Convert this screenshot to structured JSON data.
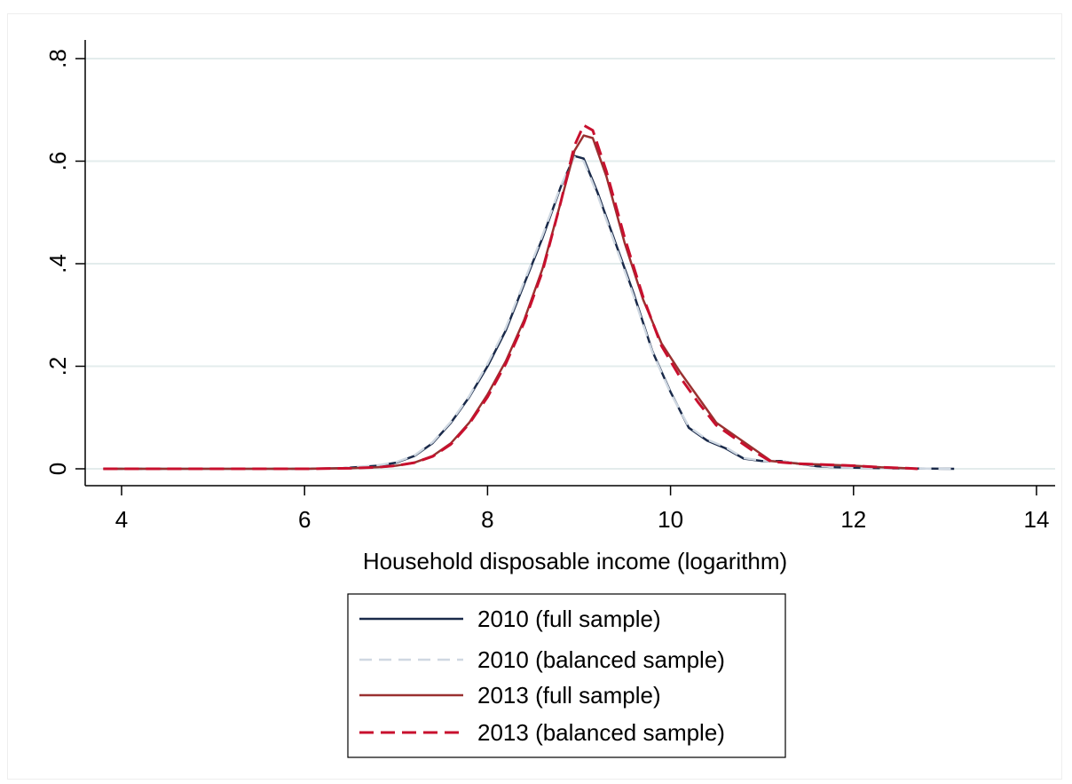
{
  "chart_data": {
    "type": "line",
    "xlabel": "Household disposable income (logarithm)",
    "ylabel": "",
    "xlim": [
      3.7,
      14.2
    ],
    "ylim": [
      0,
      0.8
    ],
    "x_ticks": [
      4,
      6,
      8,
      10,
      12,
      14
    ],
    "x_tick_labels": [
      "4",
      "6",
      "8",
      "10",
      "12",
      "14"
    ],
    "y_ticks": [
      0,
      0.2,
      0.4,
      0.6,
      0.8
    ],
    "y_tick_labels": [
      "0",
      ".2",
      ".4",
      ".6",
      ".8"
    ],
    "grid": "horizontal",
    "legend_position": "bottom",
    "series": [
      {
        "name": "2010 (full sample)",
        "color": "#1a2a4a",
        "dash": "solid",
        "points": [
          [
            3.8,
            0
          ],
          [
            5,
            0
          ],
          [
            6,
            0
          ],
          [
            6.4,
            0.001
          ],
          [
            6.8,
            0.006
          ],
          [
            7.0,
            0.012
          ],
          [
            7.2,
            0.025
          ],
          [
            7.4,
            0.05
          ],
          [
            7.6,
            0.09
          ],
          [
            7.8,
            0.14
          ],
          [
            8.0,
            0.2
          ],
          [
            8.2,
            0.27
          ],
          [
            8.4,
            0.36
          ],
          [
            8.6,
            0.45
          ],
          [
            8.8,
            0.55
          ],
          [
            8.95,
            0.61
          ],
          [
            9.05,
            0.605
          ],
          [
            9.2,
            0.54
          ],
          [
            9.4,
            0.44
          ],
          [
            9.6,
            0.34
          ],
          [
            9.8,
            0.23
          ],
          [
            10.0,
            0.15
          ],
          [
            10.2,
            0.08
          ],
          [
            10.4,
            0.055
          ],
          [
            10.6,
            0.04
          ],
          [
            10.8,
            0.02
          ],
          [
            11.0,
            0.015
          ],
          [
            11.2,
            0.015
          ],
          [
            11.4,
            0.01
          ],
          [
            11.6,
            0.005
          ],
          [
            11.8,
            0.003
          ],
          [
            12.0,
            0.002
          ],
          [
            12.4,
            0.001
          ],
          [
            12.8,
            0.0005
          ],
          [
            13.1,
            0
          ]
        ]
      },
      {
        "name": "2010 (balanced sample)",
        "color": "#cfd8e2",
        "dash": "dashed",
        "points": [
          [
            3.8,
            0
          ],
          [
            5,
            0
          ],
          [
            6,
            0
          ],
          [
            6.4,
            0.001
          ],
          [
            6.8,
            0.007
          ],
          [
            7.0,
            0.013
          ],
          [
            7.2,
            0.026
          ],
          [
            7.4,
            0.052
          ],
          [
            7.6,
            0.092
          ],
          [
            7.8,
            0.142
          ],
          [
            8.0,
            0.205
          ],
          [
            8.2,
            0.275
          ],
          [
            8.4,
            0.365
          ],
          [
            8.6,
            0.455
          ],
          [
            8.8,
            0.552
          ],
          [
            8.95,
            0.608
          ],
          [
            9.05,
            0.6
          ],
          [
            9.2,
            0.535
          ],
          [
            9.4,
            0.435
          ],
          [
            9.6,
            0.335
          ],
          [
            9.8,
            0.228
          ],
          [
            10.0,
            0.148
          ],
          [
            10.2,
            0.082
          ],
          [
            10.4,
            0.057
          ],
          [
            10.6,
            0.042
          ],
          [
            10.8,
            0.021
          ],
          [
            11.0,
            0.016
          ],
          [
            11.2,
            0.015
          ],
          [
            11.4,
            0.01
          ],
          [
            11.6,
            0.006
          ],
          [
            11.8,
            0.003
          ],
          [
            12.0,
            0.002
          ],
          [
            12.4,
            0.001
          ],
          [
            12.8,
            0.0005
          ],
          [
            13.1,
            0
          ]
        ]
      },
      {
        "name": "2013 (full sample)",
        "color": "#9a3030",
        "dash": "solid",
        "points": [
          [
            3.8,
            0
          ],
          [
            5,
            0
          ],
          [
            6,
            0
          ],
          [
            6.5,
            0.001
          ],
          [
            6.8,
            0.003
          ],
          [
            7.0,
            0.006
          ],
          [
            7.2,
            0.012
          ],
          [
            7.4,
            0.025
          ],
          [
            7.6,
            0.05
          ],
          [
            7.8,
            0.09
          ],
          [
            8.0,
            0.145
          ],
          [
            8.2,
            0.21
          ],
          [
            8.4,
            0.29
          ],
          [
            8.6,
            0.39
          ],
          [
            8.8,
            0.52
          ],
          [
            8.95,
            0.62
          ],
          [
            9.05,
            0.65
          ],
          [
            9.15,
            0.645
          ],
          [
            9.3,
            0.57
          ],
          [
            9.5,
            0.44
          ],
          [
            9.7,
            0.33
          ],
          [
            9.9,
            0.245
          ],
          [
            10.1,
            0.19
          ],
          [
            10.3,
            0.14
          ],
          [
            10.5,
            0.09
          ],
          [
            10.7,
            0.065
          ],
          [
            10.9,
            0.04
          ],
          [
            11.1,
            0.015
          ],
          [
            11.4,
            0.01
          ],
          [
            11.7,
            0.008
          ],
          [
            12.0,
            0.006
          ],
          [
            12.3,
            0.003
          ],
          [
            12.6,
            0.001
          ],
          [
            12.7,
            0
          ]
        ]
      },
      {
        "name": "2013 (balanced sample)",
        "color": "#c8102e",
        "dash": "dashed",
        "points": [
          [
            3.8,
            0
          ],
          [
            5,
            0
          ],
          [
            6,
            0
          ],
          [
            6.5,
            0.001
          ],
          [
            6.8,
            0.003
          ],
          [
            7.0,
            0.006
          ],
          [
            7.2,
            0.012
          ],
          [
            7.4,
            0.024
          ],
          [
            7.6,
            0.048
          ],
          [
            7.8,
            0.088
          ],
          [
            8.0,
            0.14
          ],
          [
            8.2,
            0.205
          ],
          [
            8.4,
            0.285
          ],
          [
            8.6,
            0.385
          ],
          [
            8.8,
            0.52
          ],
          [
            8.95,
            0.63
          ],
          [
            9.05,
            0.67
          ],
          [
            9.15,
            0.66
          ],
          [
            9.3,
            0.58
          ],
          [
            9.5,
            0.45
          ],
          [
            9.7,
            0.335
          ],
          [
            9.9,
            0.24
          ],
          [
            10.1,
            0.18
          ],
          [
            10.3,
            0.13
          ],
          [
            10.5,
            0.085
          ],
          [
            10.7,
            0.06
          ],
          [
            10.9,
            0.035
          ],
          [
            11.1,
            0.014
          ],
          [
            11.4,
            0.01
          ],
          [
            11.7,
            0.008
          ],
          [
            12.0,
            0.006
          ],
          [
            12.3,
            0.003
          ],
          [
            12.6,
            0.001
          ],
          [
            12.7,
            0
          ]
        ]
      }
    ]
  }
}
